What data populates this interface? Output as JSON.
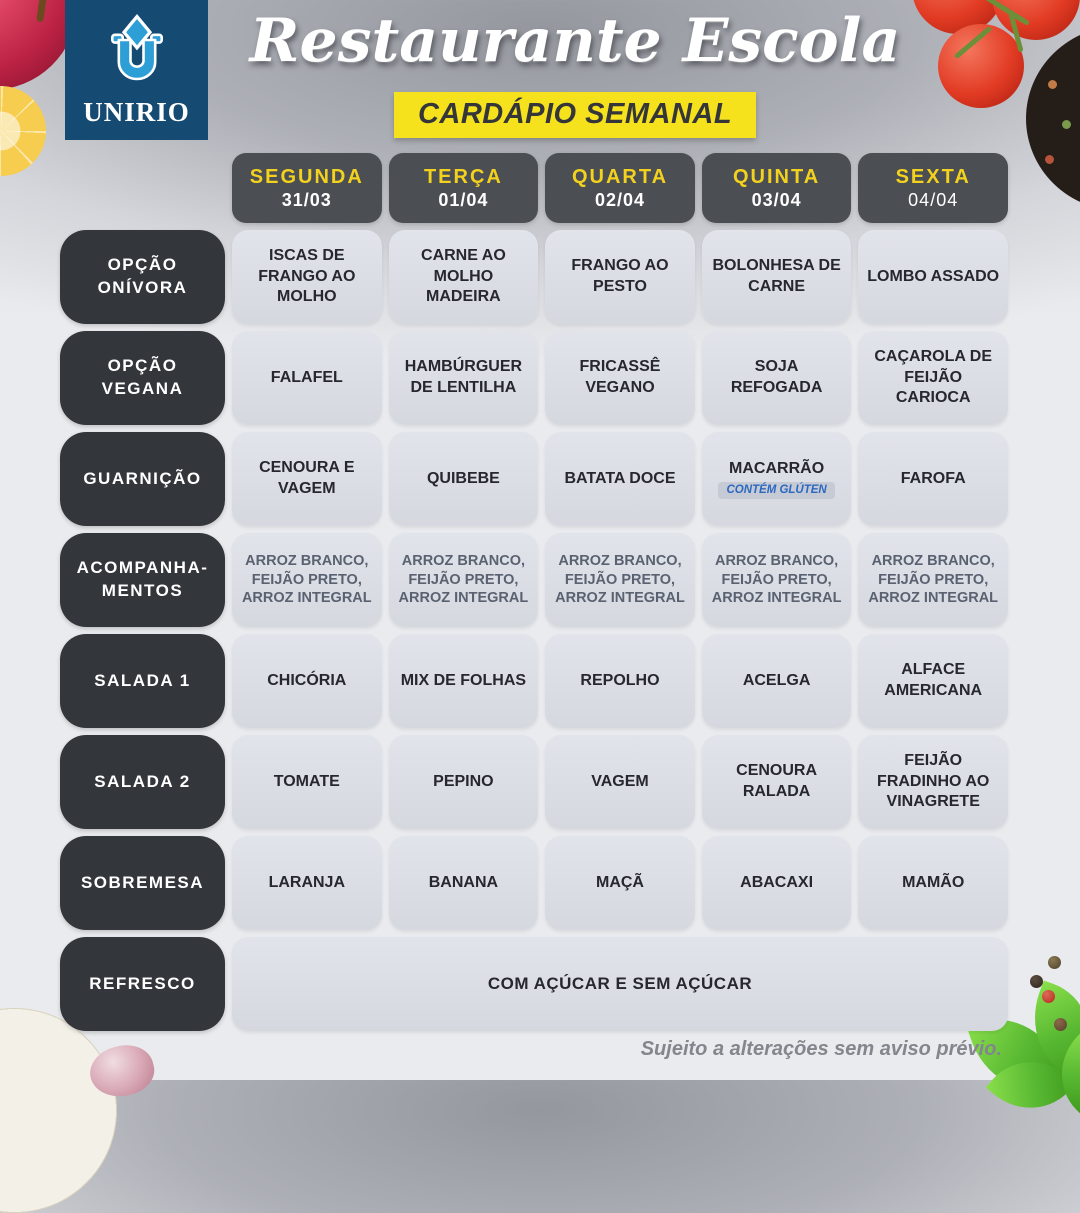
{
  "header": {
    "logo_text": "UNIRIO",
    "title": "Restaurante Escola",
    "subtitle": "CARDÁPIO SEMANAL"
  },
  "table": {
    "days": [
      {
        "name": "SEGUNDA",
        "date": "31/03"
      },
      {
        "name": "TERÇA",
        "date": "01/04"
      },
      {
        "name": "QUARTA",
        "date": "02/04"
      },
      {
        "name": "QUINTA",
        "date": "03/04"
      },
      {
        "name": "SEXTA",
        "date": "04/04"
      }
    ],
    "rows": [
      {
        "label": "OPÇÃO ONÍVORA",
        "cells": [
          "ISCAS DE FRANGO AO MOLHO",
          "CARNE AO MOLHO MADEIRA",
          "FRANGO AO PESTO",
          "BOLONHESA DE CARNE",
          "LOMBO ASSADO"
        ]
      },
      {
        "label": "OPÇÃO VEGANA",
        "cells": [
          "FALAFEL",
          "HAMBÚRGUER DE LENTILHA",
          "FRICASSÊ VEGANO",
          "SOJA REFOGADA",
          "CAÇAROLA DE FEIJÃO CARIOCA"
        ]
      },
      {
        "label": "GUARNIÇÃO",
        "cells": [
          "CENOURA E VAGEM",
          "QUIBEBE",
          "BATATA DOCE",
          "MACARRÃO",
          "FAROFA"
        ],
        "note": {
          "cell": 3,
          "text": "CONTÉM GLÚTEN"
        }
      },
      {
        "label": "ACOMPANHA-MENTOS",
        "muted": true,
        "cells": [
          "ARROZ BRANCO, FEIJÃO PRETO, ARROZ INTEGRAL",
          "ARROZ BRANCO, FEIJÃO PRETO, ARROZ INTEGRAL",
          "ARROZ BRANCO, FEIJÃO PRETO, ARROZ INTEGRAL",
          "ARROZ BRANCO, FEIJÃO PRETO, ARROZ INTEGRAL",
          "ARROZ BRANCO, FEIJÃO PRETO, ARROZ INTEGRAL"
        ]
      },
      {
        "label": "SALADA 1",
        "cells": [
          "CHICÓRIA",
          "MIX DE FOLHAS",
          "REPOLHO",
          "ACELGA",
          "ALFACE AMERICANA"
        ]
      },
      {
        "label": "SALADA 2",
        "cells": [
          "TOMATE",
          "PEPINO",
          "VAGEM",
          "CENOURA RALADA",
          "FEIJÃO FRADINHO AO VINAGRETE"
        ]
      },
      {
        "label": "SOBREMESA",
        "cells": [
          "LARANJA",
          "BANANA",
          "MAÇÃ",
          "ABACAXI",
          "MAMÃO"
        ]
      },
      {
        "label": "REFRESCO",
        "span_all": true,
        "cells": [
          "COM AÇÚCAR E SEM AÇÚCAR"
        ]
      }
    ]
  },
  "footer": {
    "disclaimer": "Sujeito a alterações sem aviso prévio."
  },
  "colors": {
    "brand-blue": "#154a72",
    "logo-light-blue": "#2d9fd6",
    "accent-yellow": "#f6e21c",
    "day-yellow": "#f2d21e",
    "header-gray": "#4b4e53",
    "label-dark": "#33363b",
    "cell-text": "#26282e",
    "muted-text": "#5a6170",
    "gluten-blue": "#2d68c0",
    "footer-gray": "#83868d"
  }
}
